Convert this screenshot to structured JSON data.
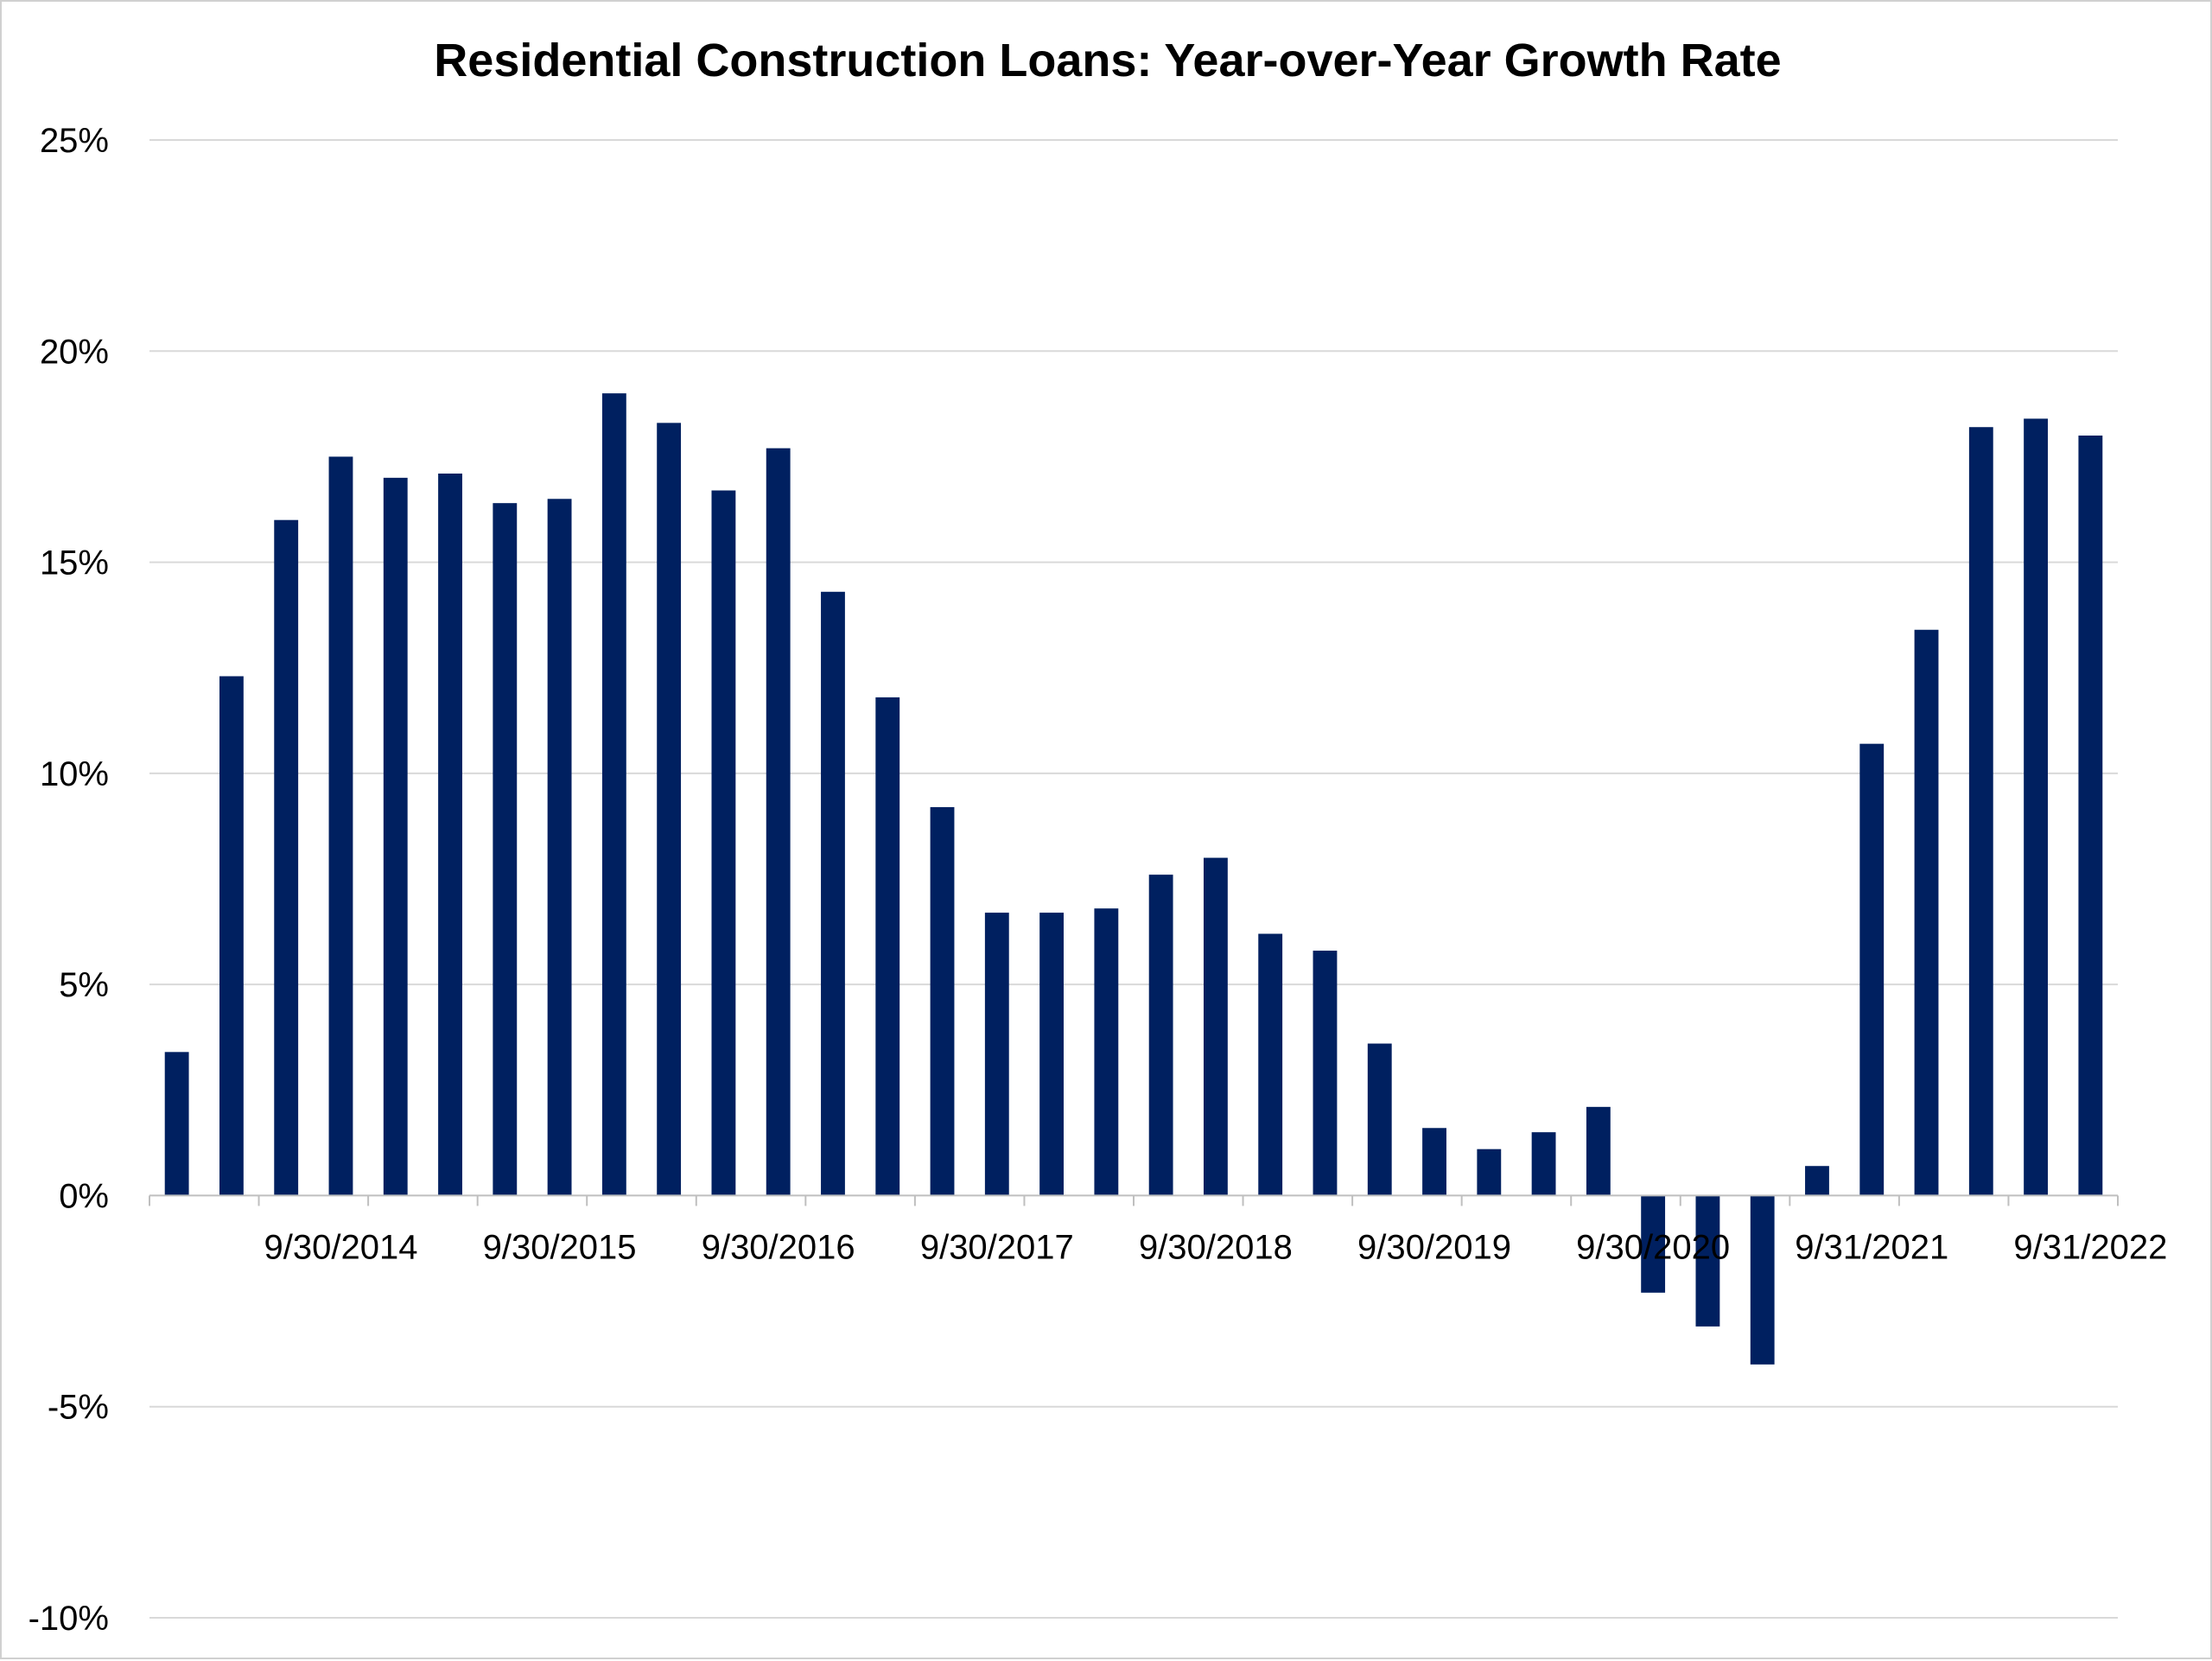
{
  "chart_data": {
    "type": "bar",
    "title": "Residential Construction Loans: Year-over-Year Growth Rate",
    "xlabel": "",
    "ylabel": "",
    "ylim": [
      -10,
      25
    ],
    "y_ticks": [
      25,
      20,
      15,
      10,
      5,
      0,
      -5,
      -10
    ],
    "y_tick_labels": [
      "25%",
      "20%",
      "15%",
      "10%",
      "5%",
      "0%",
      "-5%",
      "-10%"
    ],
    "x_tick_labels": [
      {
        "label": "9/30/2014",
        "index": 3
      },
      {
        "label": "9/30/2015",
        "index": 7
      },
      {
        "label": "9/30/2016",
        "index": 11
      },
      {
        "label": "9/30/2017",
        "index": 15
      },
      {
        "label": "9/30/2018",
        "index": 19
      },
      {
        "label": "9/30/2019",
        "index": 23
      },
      {
        "label": "9/30/2020",
        "index": 27
      },
      {
        "label": "9/31/2021",
        "index": 31
      },
      {
        "label": "9/31/2022",
        "index": 35
      }
    ],
    "values": [
      3.4,
      12.3,
      16.0,
      17.5,
      17.0,
      17.1,
      16.4,
      16.5,
      19.0,
      18.3,
      16.7,
      17.7,
      14.3,
      11.8,
      9.2,
      6.7,
      6.7,
      6.8,
      7.6,
      8.0,
      6.2,
      5.8,
      3.6,
      1.6,
      1.1,
      1.5,
      2.1,
      -2.3,
      -3.1,
      -4.0,
      0.7,
      10.7,
      13.4,
      18.2,
      18.4,
      18.0
    ],
    "grid": true,
    "legend": "none",
    "bar_color": "#002060"
  }
}
